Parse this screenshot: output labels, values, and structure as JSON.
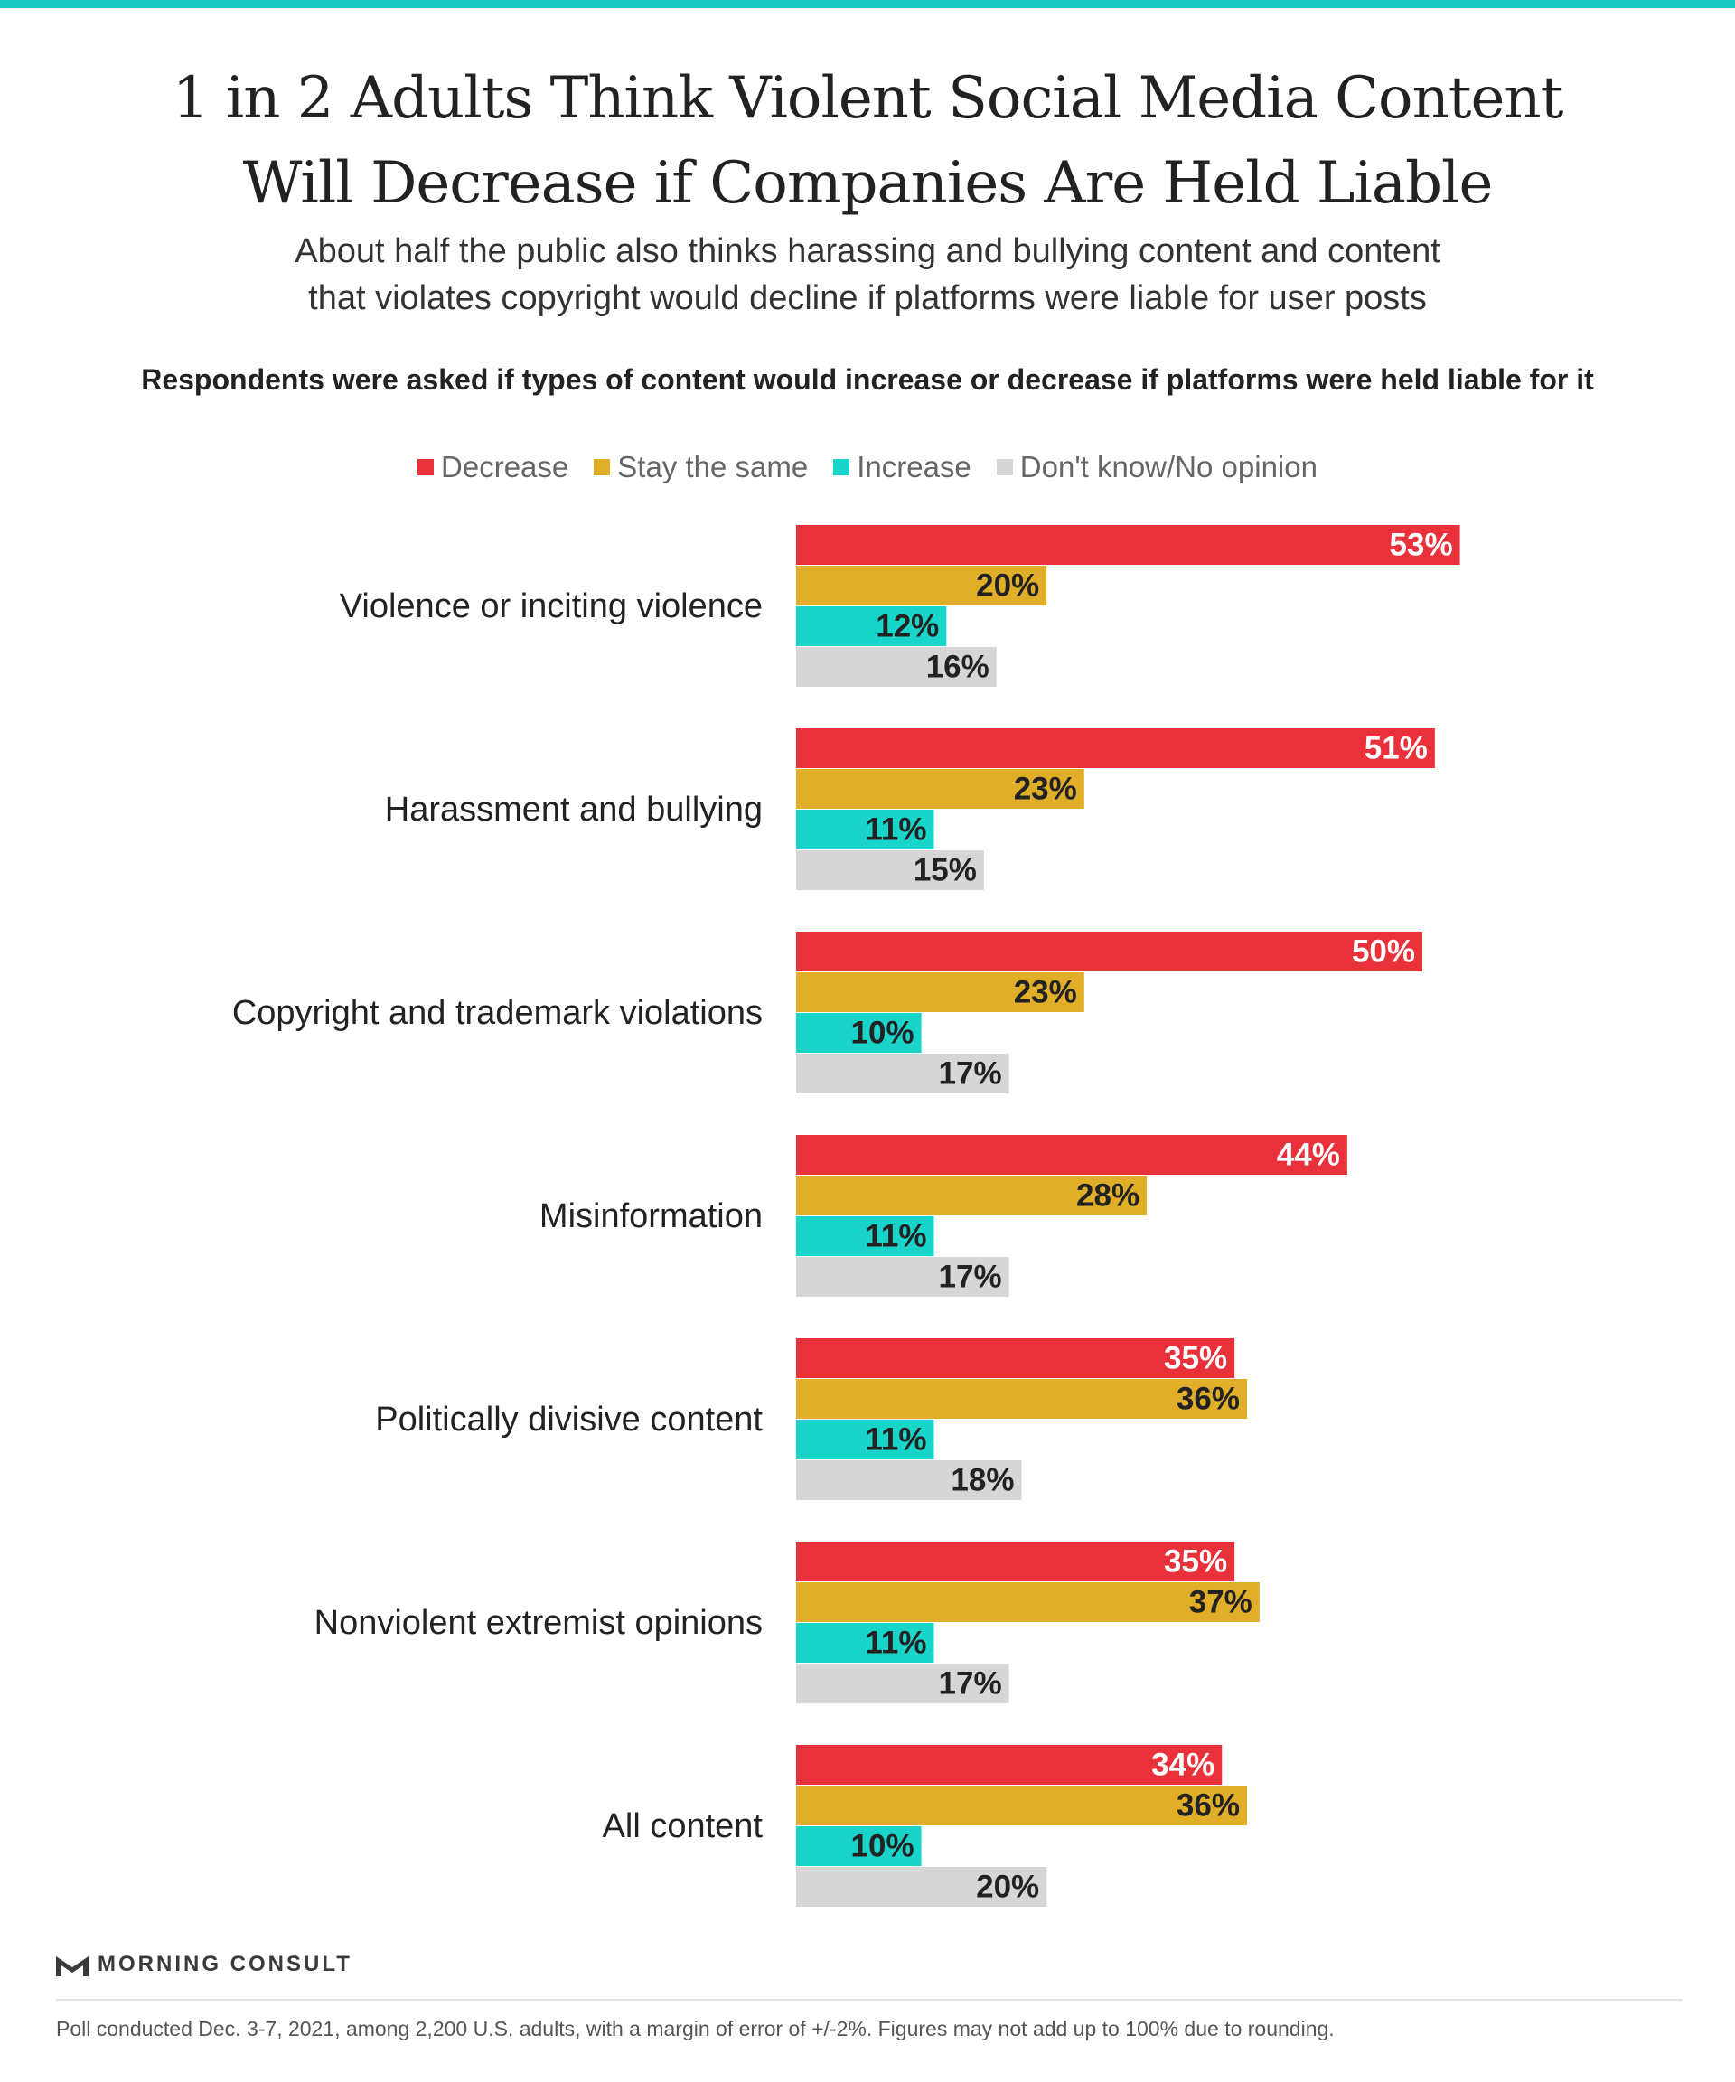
{
  "colors": {
    "top_rule": "#19c9c0",
    "decrease": "#e8313a",
    "stay_the_same": "#e0ae28",
    "increase": "#19d4c9",
    "dont_know": "#d6d6d6",
    "label_on_red": "#ffffff",
    "label_dark": "#222222"
  },
  "header": {
    "title_line1": "1 in 2 Adults Think Violent Social Media Content",
    "title_line2": "Will Decrease if Companies Are Held Liable",
    "subtitle_line1": "About half the public also thinks harassing and bullying content and content",
    "subtitle_line2": "that violates copyright would decline if platforms were liable for user posts",
    "question": "Respondents were asked if types of content would increase or decrease if platforms were held liable for it"
  },
  "legend": [
    {
      "label": "Decrease",
      "color_key": "decrease"
    },
    {
      "label": "Stay the same",
      "color_key": "stay_the_same"
    },
    {
      "label": "Increase",
      "color_key": "increase"
    },
    {
      "label": "Don't know/No opinion",
      "color_key": "dont_know"
    }
  ],
  "chart_data": {
    "type": "bar",
    "orientation": "horizontal",
    "unit": "%",
    "categories": [
      "Violence or inciting violence",
      "Harassment and bullying",
      "Copyright and trademark violations",
      "Misinformation",
      "Politically divisive content",
      "Nonviolent extremist opinions",
      "All content"
    ],
    "series": [
      {
        "name": "Decrease",
        "values": [
          53,
          51,
          50,
          44,
          35,
          35,
          34
        ]
      },
      {
        "name": "Stay the same",
        "values": [
          20,
          23,
          23,
          28,
          36,
          37,
          36
        ]
      },
      {
        "name": "Increase",
        "values": [
          12,
          11,
          10,
          11,
          11,
          11,
          10
        ]
      },
      {
        "name": "Don't know/No opinion",
        "values": [
          16,
          15,
          17,
          17,
          18,
          17,
          20
        ]
      }
    ],
    "xlim": [
      0,
      60
    ],
    "grid": false,
    "legend_position": "top-center"
  },
  "footer": {
    "logo_text": "MORNING CONSULT",
    "note": "Poll conducted Dec. 3-7, 2021, among 2,200 U.S. adults, with a margin of error of +/-2%. Figures may not add up to 100% due to rounding."
  }
}
